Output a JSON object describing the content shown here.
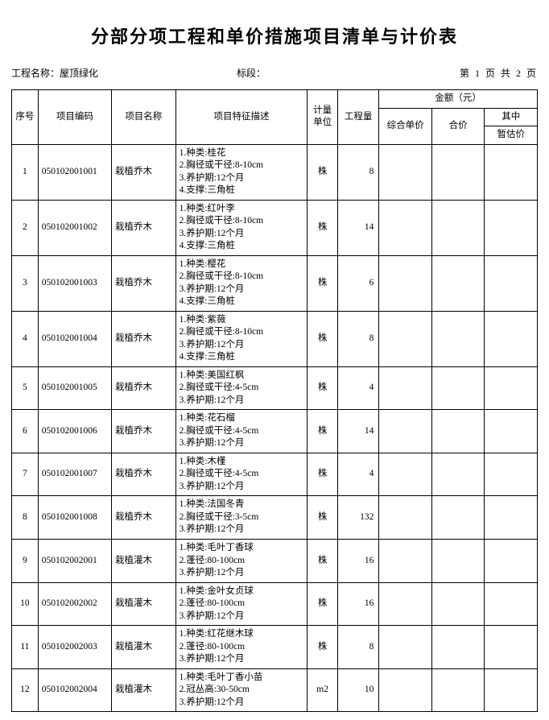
{
  "title": "分部分项工程和单价措施项目清单与计价表",
  "meta": {
    "projLabel": "工程名称：",
    "projName": "屋顶绿化",
    "sectionLabel": "标段：",
    "sectionValue": "",
    "pageText": "第 1 页 共 2 页"
  },
  "headers": {
    "seq": "序号",
    "code": "项目编码",
    "name": "项目名称",
    "feat": "项目特征描述",
    "unit": "计量\n单位",
    "qty": "工程量",
    "amountGroup": "金额（元）",
    "unitPrice": "综合单价",
    "sumPrice": "合价",
    "ofWhich": "其中",
    "estPrice": "暂估价"
  },
  "rows": [
    {
      "seq": "1",
      "code": "050102001001",
      "name": "栽植乔木",
      "feat": [
        "1.种类:桂花",
        "2.胸径或干径:8-10cm",
        "3.养护期:12个月",
        "4.支撑:三角桩"
      ],
      "unit": "株",
      "qty": "8"
    },
    {
      "seq": "2",
      "code": "050102001002",
      "name": "栽植乔木",
      "feat": [
        "1.种类:红叶李",
        "2.胸径或干径:8-10cm",
        "3.养护期:12个月",
        "4.支撑:三角桩"
      ],
      "unit": "株",
      "qty": "14"
    },
    {
      "seq": "3",
      "code": "050102001003",
      "name": "栽植乔木",
      "feat": [
        "1.种类:樱花",
        "2.胸径或干径:8-10cm",
        "3.养护期:12个月",
        "4.支撑:三角桩"
      ],
      "unit": "株",
      "qty": "6"
    },
    {
      "seq": "4",
      "code": "050102001004",
      "name": "栽植乔木",
      "feat": [
        "1.种类:紫薇",
        "2.胸径或干径:8-10cm",
        "3.养护期:12个月",
        "4.支撑:三角桩"
      ],
      "unit": "株",
      "qty": "8"
    },
    {
      "seq": "5",
      "code": "050102001005",
      "name": "栽植乔木",
      "feat": [
        "1.种类:美国红枫",
        "2.胸径或干径:4-5cm",
        "3.养护期:12个月"
      ],
      "unit": "株",
      "qty": "4"
    },
    {
      "seq": "6",
      "code": "050102001006",
      "name": "栽植乔木",
      "feat": [
        "1.种类:花石榴",
        "2.胸径或干径:4-5cm",
        "3.养护期:12个月"
      ],
      "unit": "株",
      "qty": "14"
    },
    {
      "seq": "7",
      "code": "050102001007",
      "name": "栽植乔木",
      "feat": [
        "1.种类:木槿",
        "2.胸径或干径:4-5cm",
        "3.养护期:12个月"
      ],
      "unit": "株",
      "qty": "4"
    },
    {
      "seq": "8",
      "code": "050102001008",
      "name": "栽植乔木",
      "feat": [
        "1.种类:法国冬青",
        "2.胸径或干径:3-5cm",
        "3.养护期:12个月"
      ],
      "unit": "株",
      "qty": "132"
    },
    {
      "seq": "9",
      "code": "050102002001",
      "name": "栽植灌木",
      "feat": [
        "1.种类:毛叶丁香球",
        "2.蓬径:80-100cm",
        "3.养护期:12个月"
      ],
      "unit": "株",
      "qty": "16"
    },
    {
      "seq": "10",
      "code": "050102002002",
      "name": "栽植灌木",
      "feat": [
        "1.种类:金叶女贞球",
        "2.蓬径:80-100cm",
        "3.养护期:12个月"
      ],
      "unit": "株",
      "qty": "16"
    },
    {
      "seq": "11",
      "code": "050102002003",
      "name": "栽植灌木",
      "feat": [
        "1.种类:红花继木球",
        "2.蓬径:80-100cm",
        "3.养护期:12个月"
      ],
      "unit": "株",
      "qty": "8"
    },
    {
      "seq": "12",
      "code": "050102002004",
      "name": "栽植灌木",
      "feat": [
        "1.种类:毛叶丁香小苗",
        "2.冠丛高:30-50cm",
        "3.养护期:12个月"
      ],
      "unit": "m2",
      "qty": "10"
    }
  ]
}
